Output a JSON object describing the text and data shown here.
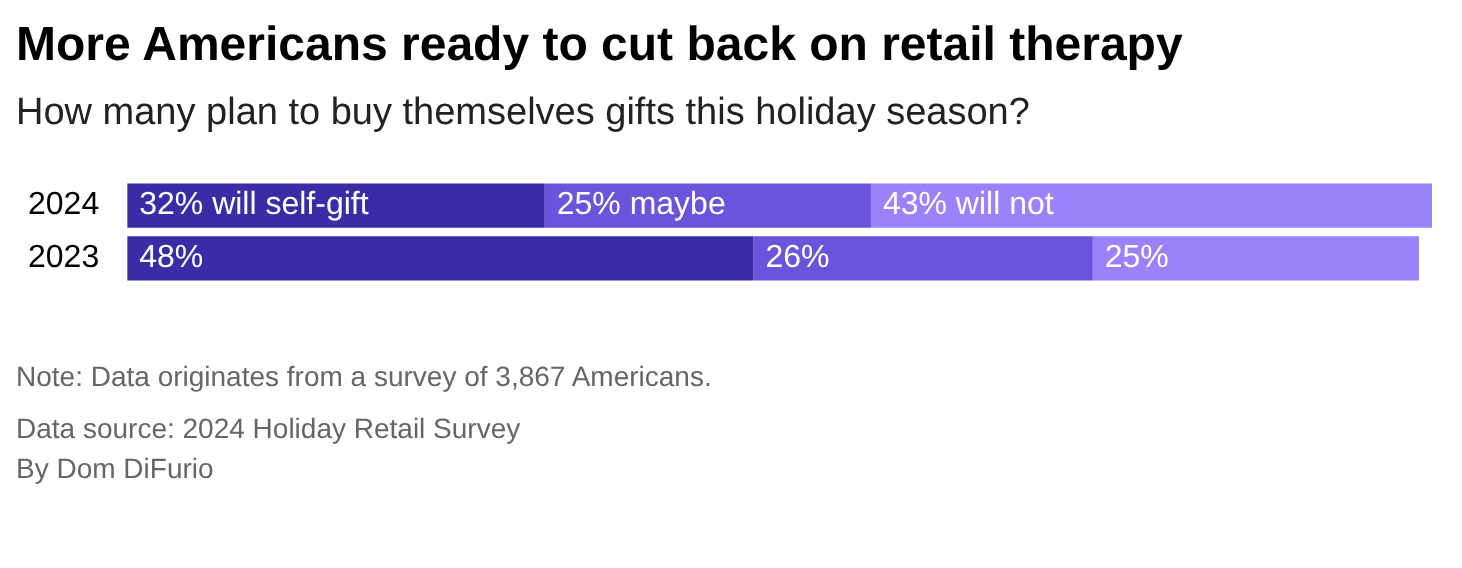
{
  "chart_data": {
    "type": "bar",
    "orientation": "horizontal",
    "stacked": true,
    "title": "More Americans ready to cut back on retail therapy",
    "subtitle": "How many plan to buy themselves gifts this holiday season?",
    "categories": [
      "2024",
      "2023"
    ],
    "series": [
      {
        "color": "#3a2ba6",
        "values": [
          32,
          48
        ],
        "value_labels": [
          "32% will self-gift",
          "48%"
        ]
      },
      {
        "color": "#6b53dc",
        "values": [
          25,
          26
        ],
        "value_labels": [
          "25% maybe",
          "26%"
        ]
      },
      {
        "color": "#9a82fb",
        "values": [
          43,
          25
        ],
        "value_labels": [
          "43% will not",
          "25%"
        ]
      }
    ],
    "xlim": [
      0,
      100
    ],
    "legend": false,
    "annotations": [
      "Note: Data originates from a survey of 3,867 Americans.",
      "Data source: 2024 Holiday Retail Survey",
      "By Dom DiFurio"
    ]
  }
}
